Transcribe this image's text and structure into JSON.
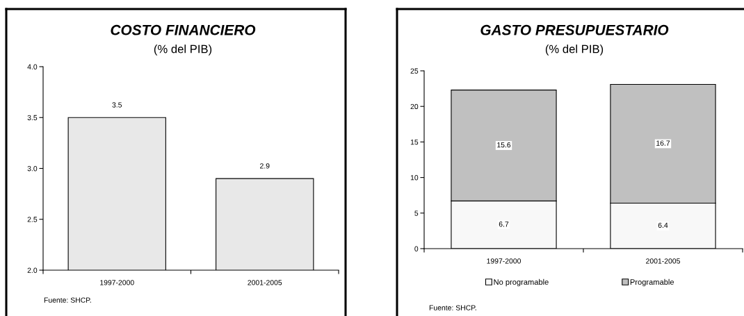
{
  "chart_data": [
    {
      "type": "bar",
      "title": "COSTO FINANCIERO",
      "subtitle": "(% del PIB)",
      "categories": [
        "1997-2000",
        "2001-2005"
      ],
      "values": [
        3.5,
        2.9
      ],
      "color": "#e8e8e8",
      "ylim": [
        2.0,
        4.0
      ],
      "yticks": [
        {
          "value": 2.0,
          "label": "2.0"
        },
        {
          "value": 2.5,
          "label": "2.5"
        },
        {
          "value": 3.0,
          "label": "3.0"
        },
        {
          "value": 3.5,
          "label": "3.5"
        },
        {
          "value": 4.0,
          "label": "4.0"
        }
      ],
      "data_labels": true,
      "annotations": [
        "Fuente: SHCP."
      ]
    },
    {
      "type": "bar",
      "title": "GASTO PRESUPUESTARIO",
      "subtitle": "(% del PIB)",
      "categories": [
        "1997-2000",
        "2001-2005"
      ],
      "stacked": true,
      "series": [
        {
          "name": "No programable",
          "color": "#f8f8f8",
          "values": [
            6.7,
            6.4
          ]
        },
        {
          "name": "Programable",
          "color": "#c0c0c0",
          "values": [
            15.6,
            16.7
          ]
        }
      ],
      "ylim": [
        0,
        25
      ],
      "yticks": [
        0,
        5,
        10,
        15,
        20,
        25
      ],
      "data_labels": true,
      "legend": "bottom",
      "annotations": [
        "Fuente: SHCP."
      ]
    }
  ]
}
